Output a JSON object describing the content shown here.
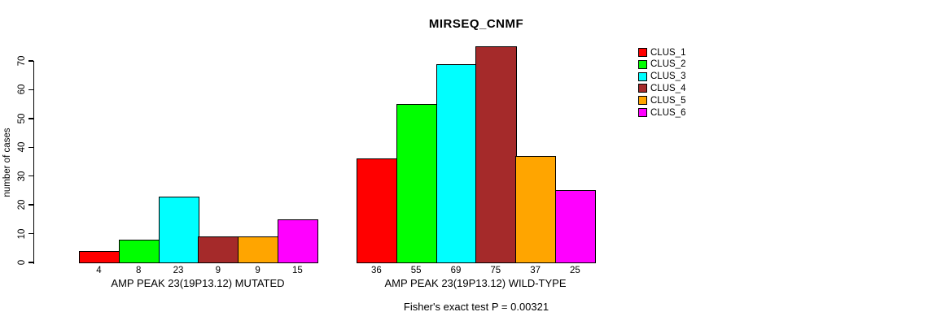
{
  "chart_data": {
    "type": "bar",
    "title": "MIRSEQ_CNMF",
    "ylabel": "number of cases",
    "xlabel": "",
    "ylim": [
      0,
      75
    ],
    "yticks": [
      0,
      10,
      20,
      30,
      40,
      50,
      60,
      70
    ],
    "grid": false,
    "legend_position": "right",
    "legend": [
      {
        "label": "CLUS_1",
        "color": "#FF0000"
      },
      {
        "label": "CLUS_2",
        "color": "#00FF00"
      },
      {
        "label": "CLUS_3",
        "color": "#00FFFF"
      },
      {
        "label": "CLUS_4",
        "color": "#A52A2A"
      },
      {
        "label": "CLUS_5",
        "color": "#FFA500"
      },
      {
        "label": "CLUS_6",
        "color": "#FF00FF"
      }
    ],
    "groups": [
      {
        "label": "AMP PEAK 23(19P13.12) MUTATED",
        "values": [
          4,
          8,
          23,
          9,
          9,
          15
        ]
      },
      {
        "label": "AMP PEAK 23(19P13.12) WILD-TYPE",
        "values": [
          36,
          55,
          69,
          75,
          37,
          25
        ]
      }
    ],
    "annotation": "Fisher's exact test P = 0.00321",
    "axis_color": "#000000",
    "background_color": "#FFFFFF"
  }
}
